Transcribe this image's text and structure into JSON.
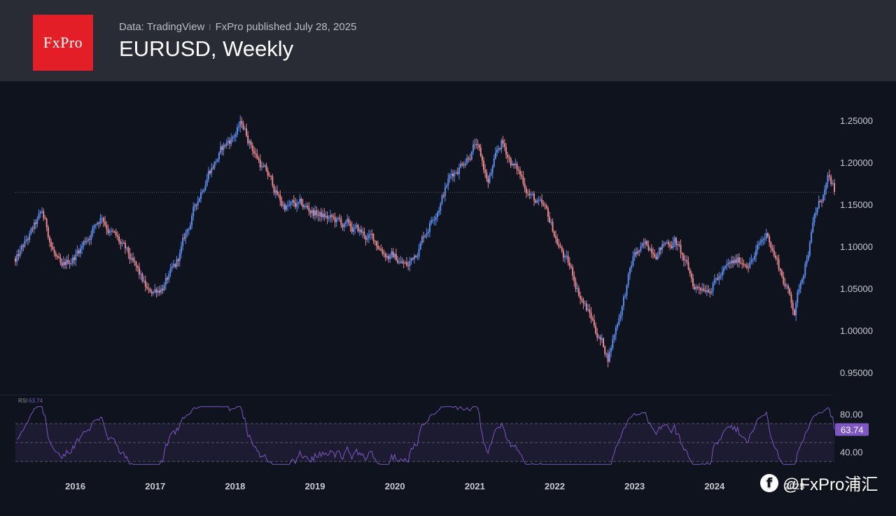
{
  "header": {
    "logo_text": "FxPro",
    "source": "Data: TradingView",
    "separator": "I",
    "published": "FxPro published July 28, 2025",
    "title": "EURUSD, Weekly"
  },
  "colors": {
    "background": "#0f131d",
    "header": "#2a2c35",
    "logo": "#e41e26",
    "up_candle": "#5b8def",
    "down_candle": "#e8898f",
    "rsi_line": "#7e57c2",
    "axis_text": "#c8cad0"
  },
  "chart_data": [
    {
      "type": "candlestick",
      "title": "EURUSD, Weekly",
      "x_ticks": [
        "2016",
        "2017",
        "2018",
        "2019",
        "2020",
        "2021",
        "2022",
        "2023",
        "2024",
        "2025"
      ],
      "y_ticks": [
        "1.25000",
        "1.20000",
        "1.15000",
        "1.10000",
        "1.05000",
        "1.00000",
        "0.95000"
      ],
      "ylim": [
        0.93,
        1.28
      ],
      "xlim": [
        "2015-04",
        "2025-07"
      ],
      "grid": false,
      "current_price_line": 1.1645,
      "key_closes": [
        {
          "date": "2015-04",
          "close": 1.08
        },
        {
          "date": "2015-08",
          "close": 1.135
        },
        {
          "date": "2015-11",
          "close": 1.065
        },
        {
          "date": "2016-05",
          "close": 1.14
        },
        {
          "date": "2016-12",
          "close": 1.04
        },
        {
          "date": "2017-04",
          "close": 1.07
        },
        {
          "date": "2017-09",
          "close": 1.195
        },
        {
          "date": "2018-02",
          "close": 1.245
        },
        {
          "date": "2018-08",
          "close": 1.15
        },
        {
          "date": "2019-01",
          "close": 1.14
        },
        {
          "date": "2019-10",
          "close": 1.105
        },
        {
          "date": "2020-03",
          "close": 1.075
        },
        {
          "date": "2020-09",
          "close": 1.18
        },
        {
          "date": "2021-01",
          "close": 1.225
        },
        {
          "date": "2021-03",
          "close": 1.175
        },
        {
          "date": "2021-05",
          "close": 1.22
        },
        {
          "date": "2021-12",
          "close": 1.13
        },
        {
          "date": "2022-09",
          "close": 0.97
        },
        {
          "date": "2023-01",
          "close": 1.09
        },
        {
          "date": "2023-07",
          "close": 1.11
        },
        {
          "date": "2023-10",
          "close": 1.05
        },
        {
          "date": "2024-07",
          "close": 1.09
        },
        {
          "date": "2024-09",
          "close": 1.115
        },
        {
          "date": "2025-01",
          "close": 1.025
        },
        {
          "date": "2025-04",
          "close": 1.135
        },
        {
          "date": "2025-06",
          "close": 1.175
        },
        {
          "date": "2025-07",
          "close": 1.165
        }
      ]
    },
    {
      "type": "line",
      "title": "RSI",
      "label": "RSI",
      "last_value_label": "63.74",
      "y_ticks": [
        "80.00",
        "40.00"
      ],
      "ylim": [
        25,
        90
      ],
      "bands": [
        70,
        30
      ],
      "midline": 50,
      "last_value": 63.74,
      "x_ticks": [
        "2016",
        "2017",
        "2018",
        "2019",
        "2020",
        "2021",
        "2022",
        "2023",
        "2024",
        "2025"
      ]
    }
  ],
  "watermark": {
    "text": "@FxPro浦汇"
  }
}
